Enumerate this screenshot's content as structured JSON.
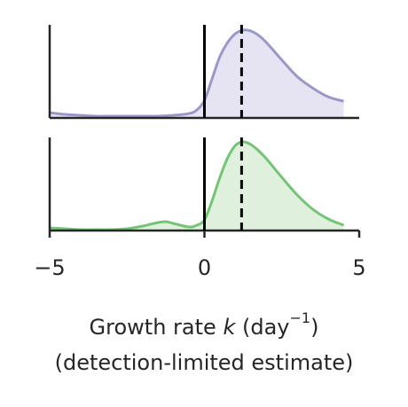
{
  "chart_data": {
    "type": "area",
    "xlabel": {
      "prefix": "Growth rate ",
      "variable": "k",
      "unit_open": " (day",
      "exponent": "−1",
      "unit_close": ")",
      "line2": "(detection-limited estimate)"
    },
    "xlim": [
      -5,
      5
    ],
    "x_ticks": [
      {
        "value": -5,
        "label": "−5"
      },
      {
        "value": 0,
        "label": "0"
      },
      {
        "value": 5,
        "label": "5"
      }
    ],
    "reference_lines": [
      {
        "x": 0,
        "style": "solid"
      },
      {
        "x": 1.2,
        "style": "dashed"
      }
    ],
    "panels": [
      {
        "color": "#9a98c8",
        "fill": "#e6e4f3",
        "x": [
          -5,
          -4.5,
          -4,
          -3.5,
          -3,
          -2.5,
          -2,
          -1.5,
          -1,
          -0.5,
          -0.25,
          0,
          0.25,
          0.5,
          0.75,
          1,
          1.25,
          1.5,
          1.75,
          2,
          2.5,
          3,
          3.5,
          4,
          4.5
        ],
        "y": [
          0.06,
          0.04,
          0.03,
          0.02,
          0.02,
          0.02,
          0.02,
          0.02,
          0.03,
          0.05,
          0.09,
          0.2,
          0.45,
          0.7,
          0.86,
          0.96,
          1.0,
          0.99,
          0.94,
          0.86,
          0.66,
          0.47,
          0.34,
          0.24,
          0.19
        ]
      },
      {
        "color": "#74c476",
        "fill": "#dff1dc",
        "x": [
          -5,
          -4.5,
          -4,
          -3.5,
          -3,
          -2.5,
          -2,
          -1.5,
          -1.25,
          -1,
          -0.5,
          -0.25,
          0,
          0.25,
          0.5,
          0.75,
          1,
          1.25,
          1.5,
          1.75,
          2,
          2.5,
          3,
          3.5,
          4,
          4.5
        ],
        "y": [
          0.03,
          0.02,
          0.01,
          0.01,
          0.01,
          0.02,
          0.05,
          0.09,
          0.1,
          0.08,
          0.04,
          0.06,
          0.12,
          0.34,
          0.6,
          0.82,
          0.96,
          1.0,
          0.97,
          0.9,
          0.81,
          0.6,
          0.4,
          0.24,
          0.13,
          0.06
        ]
      }
    ]
  }
}
